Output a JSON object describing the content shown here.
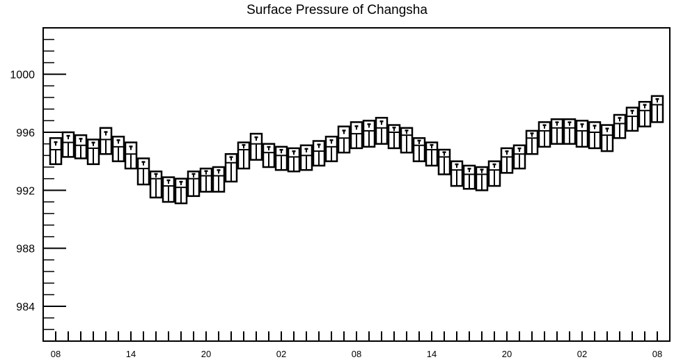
{
  "chart_data": {
    "type": "boxplot",
    "title": "Surface Pressure of Changsha",
    "xlabel": "",
    "ylabel": "",
    "ylim": [
      981.6,
      1003.2
    ],
    "y_ticks": [
      984,
      988,
      992,
      996,
      1000
    ],
    "x_ticks": [
      "08",
      "14",
      "20",
      "02",
      "08",
      "14",
      "20",
      "02",
      "08"
    ],
    "x_tick_hours": [
      8,
      14,
      20,
      26,
      32,
      38,
      44,
      50,
      56
    ],
    "x_range_hours": [
      7,
      57
    ],
    "grid": false,
    "series": [
      {
        "x_hours": [
          8,
          9,
          10,
          11,
          12,
          13,
          14,
          15,
          16,
          17,
          18,
          19,
          20,
          21,
          22,
          23,
          24,
          25,
          26,
          27,
          28,
          29,
          30,
          31,
          32,
          33,
          34,
          35,
          36,
          37,
          38,
          39,
          40,
          41,
          42,
          43,
          44,
          45,
          46,
          47,
          48,
          49,
          50,
          51,
          52,
          53,
          54,
          55,
          56
        ],
        "values": [
          994.8,
          995.3,
          995.1,
          994.9,
          995.5,
          995.0,
          994.5,
          993.5,
          992.8,
          992.3,
          992.2,
          992.8,
          993.0,
          993.0,
          993.9,
          994.8,
          995.2,
          994.6,
          994.4,
          994.3,
          994.4,
          994.7,
          995.0,
          995.6,
          995.9,
          996.1,
          996.3,
          996.0,
          995.8,
          995.1,
          994.8,
          994.3,
          993.4,
          993.1,
          993.1,
          993.4,
          994.3,
          994.5,
          995.6,
          996.1,
          996.3,
          996.3,
          996.1,
          996.0,
          995.8,
          996.6,
          997.1,
          997.5,
          997.9
        ],
        "lower": [
          993.8,
          994.3,
          994.2,
          993.8,
          994.5,
          994.0,
          993.5,
          992.4,
          991.5,
          991.2,
          991.1,
          991.6,
          991.9,
          991.9,
          992.6,
          993.5,
          994.1,
          993.6,
          993.4,
          993.3,
          993.4,
          993.7,
          994.0,
          994.6,
          994.9,
          995.0,
          995.2,
          994.9,
          994.6,
          994.0,
          993.7,
          993.1,
          992.3,
          992.1,
          992.0,
          992.3,
          993.2,
          993.5,
          994.5,
          995.0,
          995.2,
          995.2,
          995.0,
          994.9,
          994.7,
          995.6,
          996.1,
          996.4,
          996.7
        ],
        "upper": [
          995.6,
          996.0,
          995.8,
          995.5,
          996.3,
          995.7,
          995.3,
          994.2,
          993.3,
          992.9,
          992.8,
          993.3,
          993.5,
          993.6,
          994.5,
          995.3,
          995.9,
          995.2,
          995.0,
          994.9,
          995.1,
          995.4,
          995.7,
          996.4,
          996.7,
          996.8,
          997.0,
          996.5,
          996.3,
          995.6,
          995.3,
          994.8,
          994.0,
          993.7,
          993.6,
          994.0,
          994.9,
          995.1,
          996.1,
          996.7,
          996.9,
          996.9,
          996.8,
          996.7,
          996.5,
          997.2,
          997.7,
          998.1,
          998.5
        ]
      }
    ]
  }
}
